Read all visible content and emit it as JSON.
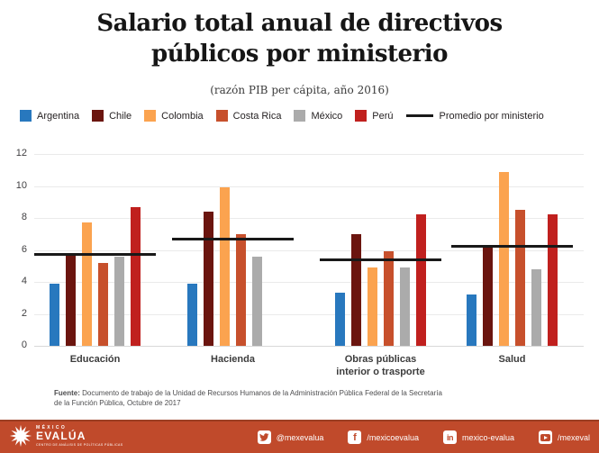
{
  "title": "Salario total anual de directivos públicos por ministerio",
  "subtitle": "(razón PIB per cápita, año 2016)",
  "legend": {
    "promedio_label": "Promedio por ministerio"
  },
  "colors": {
    "argentina": "#2878be",
    "chile": "#6b150f",
    "colombia": "#fba34f",
    "costa_rica": "#c7502c",
    "mexico": "#ababab",
    "peru": "#c0201e",
    "average_line": "#191919",
    "footer_bar": "#c04a2b"
  },
  "chart_data": {
    "type": "bar",
    "title": "Salario total anual de directivos públicos por ministerio",
    "subtitle": "(razón PIB per cápita, año 2016)",
    "categories": [
      "Educación",
      "Hacienda",
      "Obras públicas\ninterior o trasporte",
      "Salud"
    ],
    "series": [
      {
        "name": "Argentina",
        "color": "#2878be",
        "values": [
          3.9,
          3.9,
          3.3,
          3.2
        ]
      },
      {
        "name": "Chile",
        "color": "#6b150f",
        "values": [
          5.7,
          8.4,
          7.0,
          6.2
        ]
      },
      {
        "name": "Colombia",
        "color": "#fba34f",
        "values": [
          7.7,
          9.9,
          4.9,
          10.9
        ]
      },
      {
        "name": "Costa Rica",
        "color": "#c7502c",
        "values": [
          5.2,
          7.0,
          5.9,
          8.5
        ]
      },
      {
        "name": "México",
        "color": "#ababab",
        "values": [
          5.6,
          5.6,
          4.9,
          4.8
        ]
      },
      {
        "name": "Perú",
        "color": "#c0201e",
        "values": [
          8.7,
          null,
          8.2,
          8.2
        ]
      }
    ],
    "averages": [
      5.7,
      6.7,
      5.4,
      6.2
    ],
    "average_label": "Promedio por ministerio",
    "ylim": [
      0,
      12
    ],
    "yticks": [
      0,
      2,
      4,
      6,
      8,
      10,
      12
    ],
    "xlabel": "",
    "ylabel": "",
    "grid": true,
    "legend_position": "top"
  },
  "source": {
    "label": "Fuente:",
    "line1": "Documento de trabajo de la Unidad de Recursos Humanos de la Administración Pública Federal de la Secretaría",
    "line2": "de la Función Pública, Octubre de 2017"
  },
  "footer": {
    "logo": {
      "name_top": "MÉXICO",
      "name_main": "EVALÚA",
      "tagline": "CENTRO DE ANÁLISIS DE POLÍTICAS PÚBLICAS"
    },
    "social": [
      {
        "network": "twitter",
        "handle": "@mexevalua"
      },
      {
        "network": "facebook",
        "handle": "/mexicoevalua"
      },
      {
        "network": "linkedin",
        "handle": "mexico-evalua"
      },
      {
        "network": "youtube",
        "handle": "/mexeval"
      }
    ]
  }
}
